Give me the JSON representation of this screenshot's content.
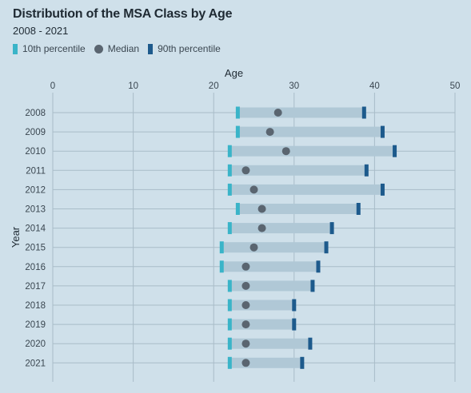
{
  "chart_data": {
    "type": "dumbbell",
    "title": "Distribution of the MSA Class by Age",
    "subtitle": "2008 - 2021",
    "xlabel": "Age",
    "ylabel": "Year",
    "xlim": [
      0,
      50
    ],
    "xticks": [
      0,
      10,
      20,
      30,
      40,
      50
    ],
    "grid": true,
    "legend_position": "top-left",
    "legend": [
      {
        "label": "10th percentile",
        "marker": "bar",
        "color": "#3ab4c8"
      },
      {
        "label": "Median",
        "marker": "dot",
        "color": "#5a6570"
      },
      {
        "label": "90th percentile",
        "marker": "bar",
        "color": "#1d5a8c"
      }
    ],
    "categories": [
      "2008",
      "2009",
      "2010",
      "2011",
      "2012",
      "2013",
      "2014",
      "2015",
      "2016",
      "2017",
      "2018",
      "2019",
      "2020",
      "2021"
    ],
    "series": [
      {
        "name": "10th percentile",
        "values": [
          23,
          23,
          22,
          22,
          22,
          23,
          22,
          21,
          21,
          22,
          22,
          22,
          22,
          22
        ]
      },
      {
        "name": "Median",
        "values": [
          28,
          27,
          29,
          24,
          25,
          26,
          26,
          25,
          24,
          24,
          24,
          24,
          24,
          24
        ]
      },
      {
        "name": "90th percentile",
        "values": [
          38.7,
          41,
          42.5,
          39,
          41,
          38,
          34.7,
          34,
          33,
          32.3,
          30,
          30,
          32,
          31
        ]
      }
    ],
    "colors": {
      "background": "#cfe0ea",
      "range_bar": "#b0c8d6",
      "p10": "#3ab4c8",
      "median": "#5a6570",
      "p90": "#1d5a8c",
      "grid": "#a9bcc8",
      "text": "#3a4650"
    }
  }
}
